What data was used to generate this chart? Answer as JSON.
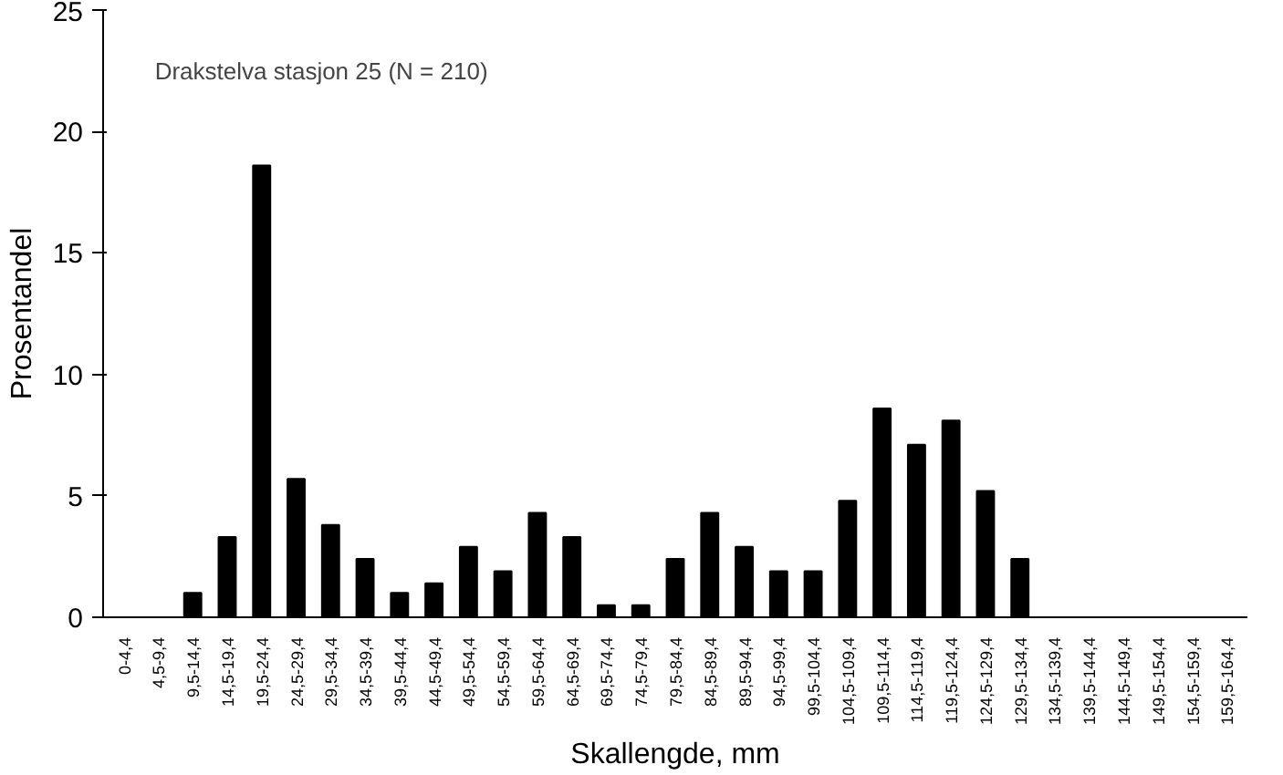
{
  "chart_data": {
    "type": "bar",
    "categories": [
      "0-4,4",
      "4,5-9,4",
      "9,5-14,4",
      "14,5-19,4",
      "19,5-24,4",
      "24,5-29,4",
      "29,5-34,4",
      "34,5-39,4",
      "39,5-44,4",
      "44,5-49,4",
      "49,5-54,4",
      "54,5-59,4",
      "59,5-64,4",
      "64,5-69,4",
      "69,5-74,4",
      "74,5-79,4",
      "79,5-84,4",
      "84,5-89,4",
      "89,5-94,4",
      "94,5-99,4",
      "99,5-104,4",
      "104,5-109,4",
      "109,5-114,4",
      "114,5-119,4",
      "119,5-124,4",
      "124,5-129,4",
      "129,5-134,4",
      "134,5-139,4",
      "139,5-144,4",
      "144,5-149,4",
      "149,5-154,4",
      "154,5-159,4",
      "159,5-164,4"
    ],
    "values": [
      0,
      0,
      1.0,
      3.3,
      18.6,
      5.7,
      3.8,
      2.4,
      1.0,
      1.4,
      2.9,
      1.9,
      4.3,
      3.3,
      0.5,
      0.5,
      2.4,
      4.3,
      2.9,
      1.9,
      1.9,
      4.8,
      8.6,
      7.1,
      8.1,
      5.2,
      2.4,
      0,
      0,
      0,
      0,
      0,
      0
    ],
    "color": "#000000",
    "xlabel": "Skallengde, mm",
    "ylabel": "Prosentandel",
    "ylim": [
      0,
      25
    ],
    "yticks": [
      0,
      5,
      10,
      15,
      20,
      25
    ],
    "annotations": [
      "Drakstelva stasjon 25 (N = 210)"
    ],
    "grid": false
  }
}
